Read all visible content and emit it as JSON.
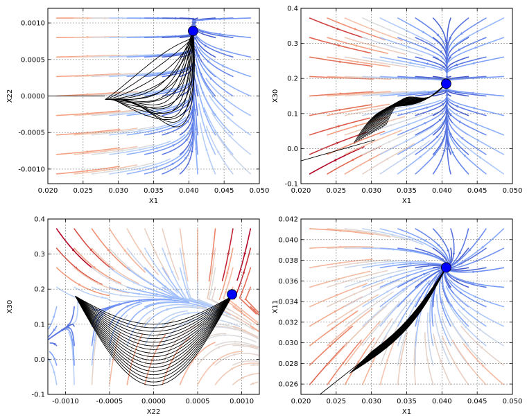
{
  "chart_data": [
    {
      "type": "streamplot",
      "xlabel": "X1",
      "ylabel": "X22",
      "xlim": [
        0.02,
        0.05
      ],
      "ylim": [
        -0.0012,
        0.0012
      ],
      "xticks": [
        "0.020",
        "0.025",
        "0.030",
        "0.035",
        "0.040",
        "0.045",
        "0.050"
      ],
      "yticks": [
        "-0.0010",
        "-0.0005",
        "0.0000",
        "0.0005",
        "0.0010"
      ],
      "ytick_values": [
        -0.001,
        -0.0005,
        0,
        0.0005,
        0.001
      ],
      "fixed_point": [
        0.0406,
        0.00089
      ],
      "grid": true
    },
    {
      "type": "streamplot",
      "xlabel": "X1",
      "ylabel": "X30",
      "xlim": [
        0.02,
        0.05
      ],
      "ylim": [
        -0.1,
        0.4
      ],
      "xticks": [
        "0.020",
        "0.025",
        "0.030",
        "0.035",
        "0.040",
        "0.045",
        "0.050"
      ],
      "yticks": [
        "-0.1",
        "0.0",
        "0.1",
        "0.2",
        "0.3",
        "0.4"
      ],
      "ytick_values": [
        -0.1,
        0.0,
        0.1,
        0.2,
        0.3,
        0.4
      ],
      "fixed_point": [
        0.0406,
        0.185
      ],
      "grid": true
    },
    {
      "type": "streamplot",
      "xlabel": "X22",
      "ylabel": "X30",
      "xlim": [
        -0.0012,
        0.0012
      ],
      "ylim": [
        -0.1,
        0.4
      ],
      "xticks": [
        "-0.0010",
        "-0.0005",
        "0.0000",
        "0.0005",
        "0.0010"
      ],
      "xtick_values": [
        -0.001,
        -0.0005,
        0,
        0.0005,
        0.001
      ],
      "yticks": [
        "-0.1",
        "0.0",
        "0.1",
        "0.2",
        "0.3",
        "0.4"
      ],
      "ytick_values": [
        -0.1,
        0.0,
        0.1,
        0.2,
        0.3,
        0.4
      ],
      "fixed_point": [
        0.00089,
        0.185
      ],
      "grid": true
    },
    {
      "type": "streamplot",
      "xlabel": "X1",
      "ylabel": "X11",
      "xlim": [
        0.02,
        0.05
      ],
      "ylim": [
        0.025,
        0.042
      ],
      "xticks": [
        "0.020",
        "0.025",
        "0.030",
        "0.035",
        "0.040",
        "0.045",
        "0.050"
      ],
      "yticks": [
        "0.026",
        "0.028",
        "0.030",
        "0.032",
        "0.034",
        "0.036",
        "0.038",
        "0.040",
        "0.042"
      ],
      "ytick_values": [
        0.026,
        0.028,
        0.03,
        0.032,
        0.034,
        0.036,
        0.038,
        0.04,
        0.042
      ],
      "fixed_point": [
        0.0406,
        0.0373
      ],
      "grid": true
    }
  ],
  "colors": {
    "strong_red": "#b40426",
    "light_red": "#f08a6c",
    "neutral": "#dddcdc",
    "light_blue": "#a5c3fe",
    "strong_blue": "#3b4cc0",
    "fixed_point": "#0000ff",
    "trajectory": "#000000"
  }
}
